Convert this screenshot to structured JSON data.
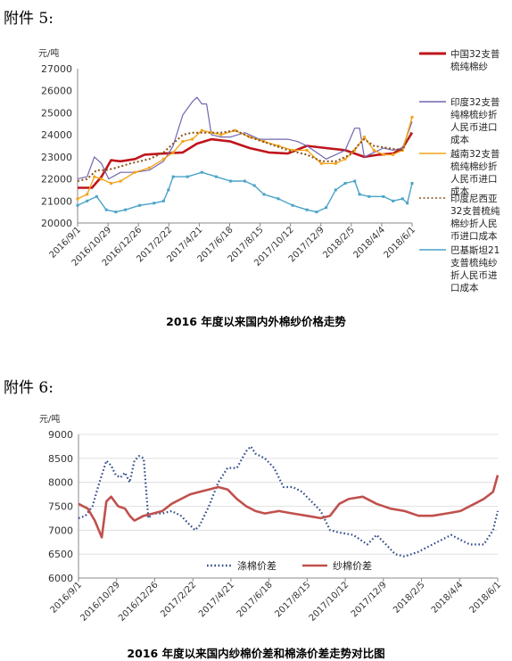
{
  "attachments": [
    "附件 5:",
    "附件 6:"
  ],
  "chart_data": [
    {
      "type": "line",
      "title": "2016 年度以来国内外棉纱价格走势",
      "unit_label": "元/吨",
      "ylim": [
        20000,
        27000
      ],
      "yticks": [
        "27000",
        "26000",
        "25000",
        "24000",
        "23000",
        "22000",
        "21000",
        "20000"
      ],
      "x_tick_labels": [
        "2016/9/1",
        "2016/10/29",
        "2016/12/26",
        "2017/2/22",
        "2017/4/21",
        "2017/6/18",
        "2017/8/15",
        "2017/10/12",
        "2017/12/9",
        "2018/2/5",
        "2018/4/4",
        "2018/6/1"
      ],
      "legend_position": "right",
      "series": [
        {
          "name": "中国32支普梳纯棉纱",
          "legend_lines": [
            "中国32支普",
            "梳纯棉纱"
          ],
          "color": "#c0141c",
          "values": [
            [
              0,
              21600
            ],
            [
              6,
              21600
            ],
            [
              10,
              22100
            ],
            [
              14,
              22850
            ],
            [
              18,
              22800
            ],
            [
              24,
              22900
            ],
            [
              28,
              23100
            ],
            [
              36,
              23150
            ],
            [
              44,
              23200
            ],
            [
              50,
              23600
            ],
            [
              56,
              23800
            ],
            [
              64,
              23700
            ],
            [
              72,
              23400
            ],
            [
              80,
              23200
            ],
            [
              88,
              23150
            ],
            [
              96,
              23500
            ],
            [
              104,
              23400
            ],
            [
              112,
              23300
            ],
            [
              120,
              23000
            ],
            [
              126,
              23100
            ],
            [
              132,
              23150
            ],
            [
              136,
              23400
            ],
            [
              140,
              24100
            ]
          ]
        },
        {
          "name": "印度32支普纯棉梳纱折人民币进口成本",
          "legend_lines": [
            "印度32支普",
            "纯棉梳纱折",
            "人民币进口",
            "成本"
          ],
          "color": "#7066b0",
          "values": [
            [
              0,
              22000
            ],
            [
              4,
              22100
            ],
            [
              7,
              23000
            ],
            [
              10,
              22700
            ],
            [
              13,
              22000
            ],
            [
              18,
              22300
            ],
            [
              24,
              22300
            ],
            [
              30,
              22400
            ],
            [
              36,
              22800
            ],
            [
              40,
              23500
            ],
            [
              44,
              24900
            ],
            [
              48,
              25500
            ],
            [
              50,
              25700
            ],
            [
              52,
              25400
            ],
            [
              54,
              25400
            ],
            [
              56,
              24000
            ],
            [
              60,
              23900
            ],
            [
              64,
              23900
            ],
            [
              70,
              24100
            ],
            [
              76,
              23800
            ],
            [
              82,
              23800
            ],
            [
              88,
              23800
            ],
            [
              92,
              23700
            ],
            [
              96,
              23500
            ],
            [
              100,
              23200
            ],
            [
              104,
              22900
            ],
            [
              108,
              23100
            ],
            [
              112,
              23300
            ],
            [
              116,
              24300
            ],
            [
              118,
              24300
            ],
            [
              120,
              23000
            ],
            [
              124,
              23200
            ],
            [
              128,
              23400
            ],
            [
              132,
              23300
            ],
            [
              136,
              23400
            ],
            [
              140,
              24600
            ]
          ]
        },
        {
          "name": "越南32支普梳纯棉纱折人民币进口成本",
          "legend_lines": [
            "越南32支普",
            "梳纯棉纱折",
            "人民币进口",
            "成本"
          ],
          "color": "#f4a31b",
          "values": [
            [
              0,
              21100
            ],
            [
              4,
              21300
            ],
            [
              7,
              22100
            ],
            [
              10,
              22000
            ],
            [
              14,
              21800
            ],
            [
              18,
              21900
            ],
            [
              24,
              22300
            ],
            [
              30,
              22500
            ],
            [
              36,
              22900
            ],
            [
              40,
              23200
            ],
            [
              44,
              23700
            ],
            [
              48,
              23800
            ],
            [
              52,
              24200
            ],
            [
              56,
              24100
            ],
            [
              60,
              24000
            ],
            [
              66,
              24200
            ],
            [
              72,
              23900
            ],
            [
              78,
              23700
            ],
            [
              84,
              23500
            ],
            [
              90,
              23300
            ],
            [
              96,
              23300
            ],
            [
              102,
              22700
            ],
            [
              108,
              22700
            ],
            [
              112,
              22900
            ],
            [
              116,
              23300
            ],
            [
              120,
              23900
            ],
            [
              124,
              23300
            ],
            [
              128,
              23100
            ],
            [
              132,
              23100
            ],
            [
              136,
              23300
            ],
            [
              140,
              24800
            ]
          ]
        },
        {
          "name": "印度尼西亚32支普梳纯棉纱折人民币进口成本",
          "legend_lines": [
            "印度尼西亚",
            "32支普梳纯",
            "棉纱折人民",
            "币进口成本"
          ],
          "color": "#8a5217",
          "dashed": true,
          "values": [
            [
              0,
              21900
            ],
            [
              4,
              22000
            ],
            [
              8,
              22400
            ],
            [
              12,
              22400
            ],
            [
              16,
              22500
            ],
            [
              22,
              22700
            ],
            [
              30,
              22900
            ],
            [
              36,
              23200
            ],
            [
              40,
              23600
            ],
            [
              44,
              24000
            ],
            [
              48,
              24100
            ],
            [
              54,
              24100
            ],
            [
              60,
              24100
            ],
            [
              66,
              24200
            ],
            [
              72,
              23900
            ],
            [
              80,
              23600
            ],
            [
              88,
              23300
            ],
            [
              96,
              23100
            ],
            [
              102,
              22800
            ],
            [
              108,
              22800
            ],
            [
              114,
              23100
            ],
            [
              118,
              23600
            ],
            [
              120,
              23800
            ],
            [
              124,
              23500
            ],
            [
              130,
              23400
            ],
            [
              136,
              23300
            ],
            [
              140,
              24200
            ]
          ]
        },
        {
          "name": "巴基斯坦21支普梳纯纱折人民币进口成本",
          "legend_lines": [
            "巴基斯坦21",
            "支普梳纯纱",
            "折人民币进",
            "口成本"
          ],
          "color": "#4aa3c8",
          "values": [
            [
              0,
              20800
            ],
            [
              4,
              21000
            ],
            [
              8,
              21200
            ],
            [
              12,
              20600
            ],
            [
              16,
              20500
            ],
            [
              20,
              20600
            ],
            [
              26,
              20800
            ],
            [
              32,
              20900
            ],
            [
              36,
              21000
            ],
            [
              38,
              21500
            ],
            [
              40,
              22100
            ],
            [
              46,
              22100
            ],
            [
              52,
              22300
            ],
            [
              58,
              22100
            ],
            [
              64,
              21900
            ],
            [
              70,
              21900
            ],
            [
              74,
              21700
            ],
            [
              78,
              21300
            ],
            [
              84,
              21100
            ],
            [
              90,
              20800
            ],
            [
              96,
              20600
            ],
            [
              100,
              20500
            ],
            [
              104,
              20700
            ],
            [
              108,
              21500
            ],
            [
              112,
              21800
            ],
            [
              116,
              21900
            ],
            [
              118,
              21300
            ],
            [
              122,
              21200
            ],
            [
              128,
              21200
            ],
            [
              132,
              21000
            ],
            [
              136,
              21100
            ],
            [
              138,
              20900
            ],
            [
              140,
              21800
            ]
          ]
        }
      ]
    },
    {
      "type": "line",
      "title": "2016 年度以来国内纱棉价差和棉涤价差走势对比图",
      "unit_label": "元/吨",
      "ylim": [
        6000,
        9000
      ],
      "yticks": [
        "9000",
        "8500",
        "8000",
        "7500",
        "7000",
        "6500",
        "6000"
      ],
      "x_tick_labels": [
        "2016/9/1",
        "2016/10/29",
        "2016/12/26",
        "2017/2/22",
        "2017/4/21",
        "2017/6/18",
        "2017/8/15",
        "2017/10/12",
        "2017/12/9",
        "2018/2/5",
        "2018/4/4",
        "2018/6/1"
      ],
      "legend_position": "bottom",
      "series": [
        {
          "name": "涤棉价差",
          "color": "#2f4a8a",
          "dashed": true,
          "values": [
            [
              0,
              7250
            ],
            [
              3,
              7300
            ],
            [
              6,
              7500
            ],
            [
              9,
              8000
            ],
            [
              12,
              8450
            ],
            [
              14,
              8350
            ],
            [
              16,
              8150
            ],
            [
              18,
              8100
            ],
            [
              20,
              8200
            ],
            [
              22,
              8000
            ],
            [
              24,
              8450
            ],
            [
              26,
              8550
            ],
            [
              28,
              8500
            ],
            [
              30,
              7250
            ],
            [
              32,
              7350
            ],
            [
              36,
              7350
            ],
            [
              40,
              7400
            ],
            [
              44,
              7300
            ],
            [
              48,
              7100
            ],
            [
              50,
              7000
            ],
            [
              52,
              7100
            ],
            [
              56,
              7500
            ],
            [
              60,
              8000
            ],
            [
              64,
              8300
            ],
            [
              68,
              8300
            ],
            [
              72,
              8650
            ],
            [
              74,
              8750
            ],
            [
              76,
              8600
            ],
            [
              80,
              8500
            ],
            [
              84,
              8300
            ],
            [
              88,
              7900
            ],
            [
              92,
              7900
            ],
            [
              96,
              7800
            ],
            [
              100,
              7600
            ],
            [
              104,
              7400
            ],
            [
              108,
              7000
            ],
            [
              112,
              6950
            ],
            [
              118,
              6900
            ],
            [
              124,
              6700
            ],
            [
              128,
              6900
            ],
            [
              132,
              6700
            ],
            [
              136,
              6500
            ],
            [
              140,
              6450
            ],
            [
              146,
              6550
            ],
            [
              152,
              6700
            ],
            [
              156,
              6800
            ],
            [
              160,
              6900
            ],
            [
              164,
              6800
            ],
            [
              168,
              6700
            ],
            [
              174,
              6700
            ],
            [
              178,
              7000
            ],
            [
              180,
              7400
            ]
          ]
        },
        {
          "name": "纱棉价差",
          "color": "#c0504d",
          "values": [
            [
              0,
              7550
            ],
            [
              4,
              7450
            ],
            [
              7,
              7200
            ],
            [
              10,
              6850
            ],
            [
              12,
              7600
            ],
            [
              14,
              7700
            ],
            [
              17,
              7500
            ],
            [
              20,
              7450
            ],
            [
              22,
              7300
            ],
            [
              24,
              7200
            ],
            [
              28,
              7300
            ],
            [
              32,
              7350
            ],
            [
              36,
              7400
            ],
            [
              40,
              7550
            ],
            [
              44,
              7650
            ],
            [
              48,
              7750
            ],
            [
              52,
              7800
            ],
            [
              56,
              7850
            ],
            [
              60,
              7900
            ],
            [
              64,
              7850
            ],
            [
              68,
              7650
            ],
            [
              72,
              7500
            ],
            [
              76,
              7400
            ],
            [
              80,
              7350
            ],
            [
              86,
              7400
            ],
            [
              92,
              7350
            ],
            [
              98,
              7300
            ],
            [
              104,
              7250
            ],
            [
              108,
              7300
            ],
            [
              112,
              7550
            ],
            [
              116,
              7650
            ],
            [
              122,
              7700
            ],
            [
              128,
              7550
            ],
            [
              134,
              7450
            ],
            [
              140,
              7400
            ],
            [
              146,
              7300
            ],
            [
              152,
              7300
            ],
            [
              158,
              7350
            ],
            [
              164,
              7400
            ],
            [
              170,
              7550
            ],
            [
              174,
              7650
            ],
            [
              178,
              7800
            ],
            [
              180,
              8150
            ]
          ]
        }
      ]
    }
  ]
}
